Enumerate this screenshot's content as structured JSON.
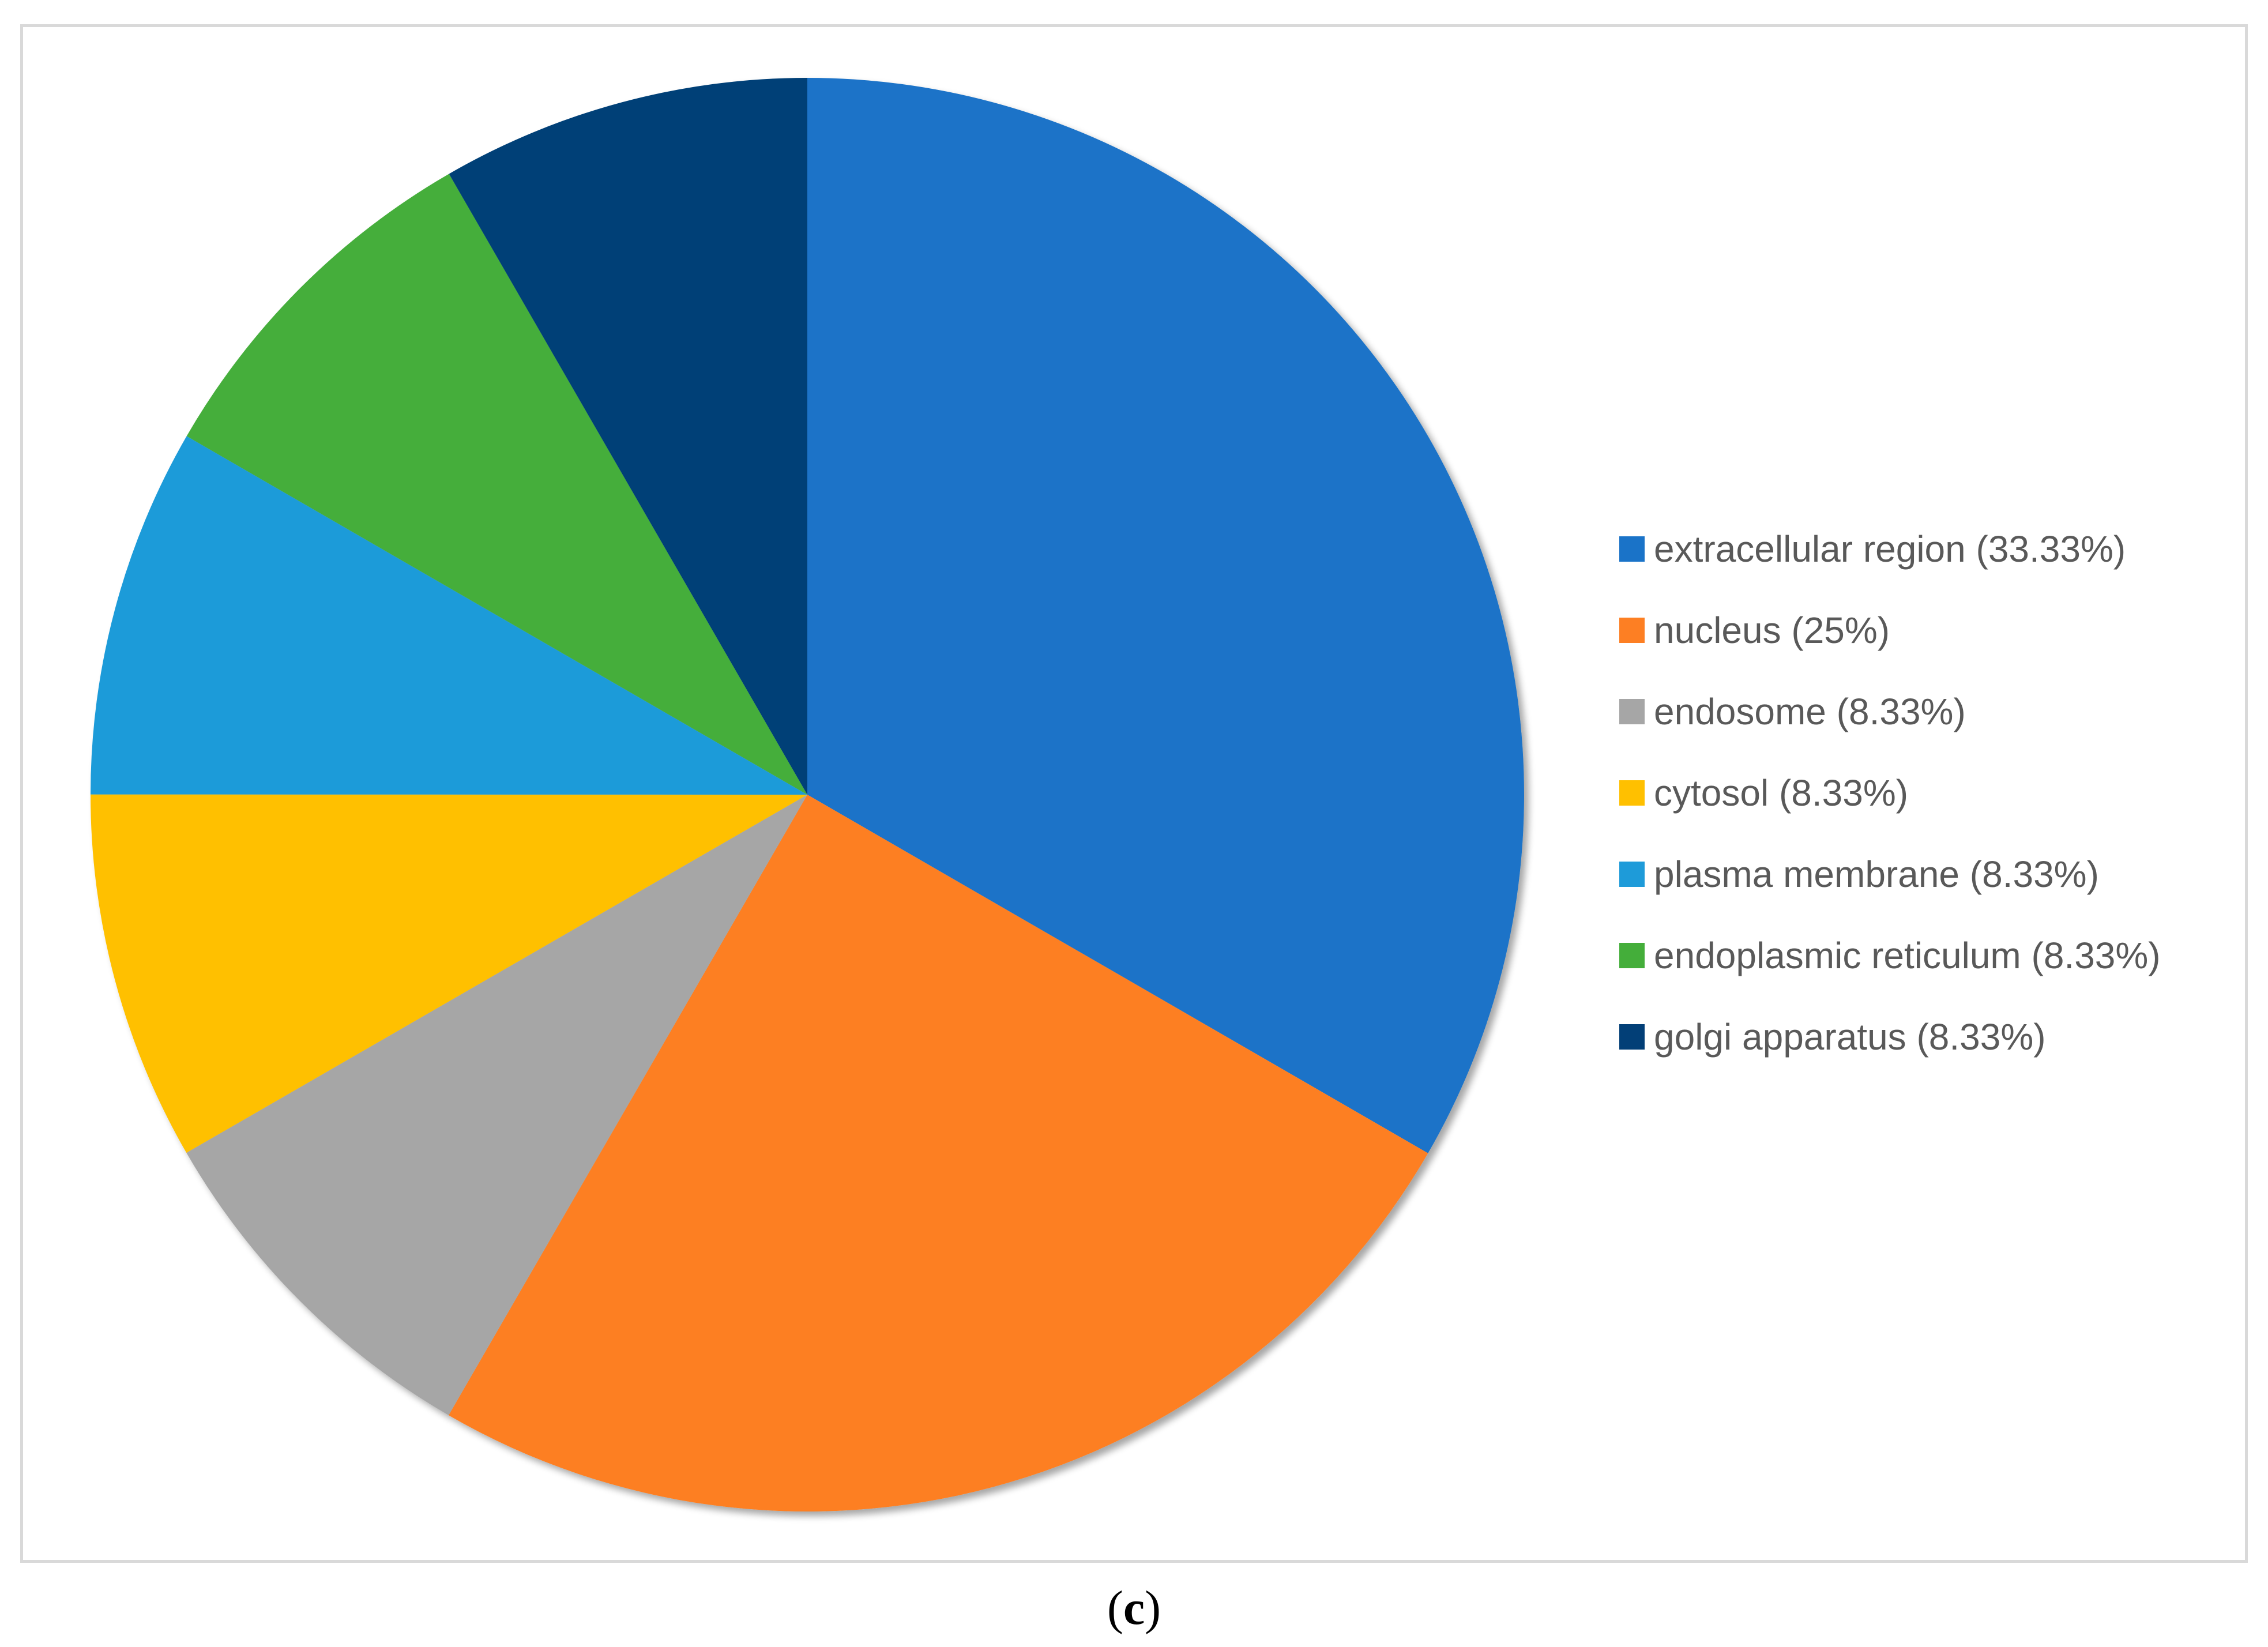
{
  "chart_data": {
    "type": "pie",
    "title": "",
    "start_angle_deg": 0,
    "direction": "clockwise",
    "legend_position": "right",
    "slices": [
      {
        "label": "extracellular region (33.33%)",
        "value": 33.33,
        "color": "#1a73c8"
      },
      {
        "label": "nucleus (25%)",
        "value": 25,
        "color": "#fd7f23"
      },
      {
        "label": "endosome (8.33%)",
        "value": 8.33,
        "color": "#a6a6a6"
      },
      {
        "label": "cytosol (8.33%)",
        "value": 8.33,
        "color": "#ffc000"
      },
      {
        "label": "plasma membrane (8.33%)",
        "value": 8.33,
        "color": "#1e9bd9"
      },
      {
        "label": "endoplasmic reticulum (8.33%)",
        "value": 8.33,
        "color": "#44ae3a"
      },
      {
        "label": "golgi apparatus (8.33%)",
        "value": 8.33,
        "color": "#023f77"
      }
    ]
  },
  "caption": {
    "open": "(",
    "letter": "c",
    "close": ")"
  }
}
